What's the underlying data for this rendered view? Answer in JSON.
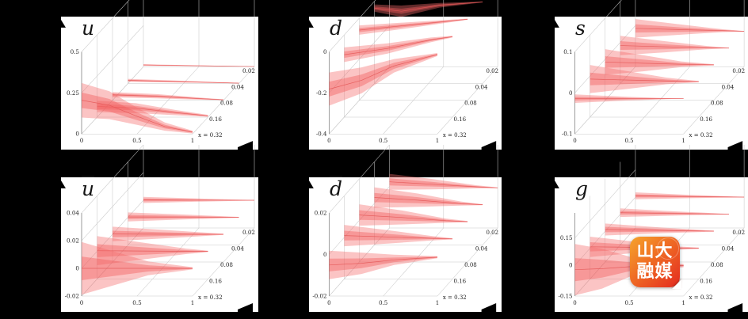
{
  "theme": {
    "background": "#000000",
    "panel_bg": "#ffffff",
    "grid_color": "#c8c8c8",
    "axis_color": "#8a8a8a",
    "band_fill": "rgba(246,108,108,0.40)",
    "band_core_fill": "rgba(240,90,90,0.42)",
    "center_line": "rgba(228,88,88,0.9)",
    "label_color": "#222222",
    "arrow_color": "#000000"
  },
  "logo": {
    "name": "shanda-rongmei-logo",
    "line1": "山大",
    "line2": "融媒",
    "color_top": "#f6a42c",
    "color_bottom": "#e42a20",
    "text_color": "#ffffff"
  },
  "chart_data": [
    {
      "type": "area",
      "id": "u",
      "title": "u",
      "overline": false,
      "yticks": [
        {
          "v": "0.5",
          "f": 0
        },
        {
          "v": "0.25",
          "f": 0.5
        },
        {
          "v": "0",
          "f": 1
        }
      ],
      "xticks": [
        "0",
        "0.5",
        "1"
      ],
      "zlabels": [
        "x = 0.32",
        "0.16",
        "0.08",
        "0.04",
        "0.02"
      ],
      "xlim": [
        0,
        1
      ],
      "baseFrac": 1.0,
      "scale": 210,
      "slices": [
        {
          "x": 0.32,
          "band": [
            [
              0,
              0.31,
              0.1
            ],
            [
              0.25,
              0.26,
              0.09
            ],
            [
              0.5,
              0.16,
              0.055
            ],
            [
              0.75,
              0.07,
              0.02
            ],
            [
              1,
              0.02,
              0.003
            ]
          ]
        },
        {
          "x": 0.16,
          "band": [
            [
              0,
              0.1,
              0.03
            ],
            [
              0.35,
              0.085,
              0.025
            ],
            [
              0.7,
              0.045,
              0.012
            ],
            [
              1,
              0.014,
              0.002
            ]
          ]
        },
        {
          "x": 0.08,
          "band": [
            [
              0,
              0.05,
              0.018
            ],
            [
              0.4,
              0.038,
              0.012
            ],
            [
              0.8,
              0.016,
              0.004
            ],
            [
              1,
              0.006,
              0.001
            ]
          ]
        },
        {
          "x": 0.04,
          "band": [
            [
              0,
              0.028,
              0.01
            ],
            [
              0.5,
              0.016,
              0.006
            ],
            [
              1,
              0.004,
              0.0005
            ]
          ]
        },
        {
          "x": 0.02,
          "band": [
            [
              0,
              0.015,
              0.006
            ],
            [
              0.5,
              0.008,
              0.003
            ],
            [
              1,
              0.002,
              0.0003
            ]
          ]
        }
      ]
    },
    {
      "type": "area",
      "id": "d",
      "title": "d",
      "overline": false,
      "yticks": [
        {
          "v": "0",
          "f": 0
        },
        {
          "v": "-0.2",
          "f": 0.5
        },
        {
          "v": "-0.4",
          "f": 1
        }
      ],
      "xticks": [
        "0",
        "0.5",
        "1"
      ],
      "zlabels": [
        "x = 0.32",
        "0.16",
        "0.08",
        "0.04",
        "0.02"
      ],
      "xlim": [
        0,
        1
      ],
      "baseFrac": 0.0,
      "scale": 265,
      "slices": [
        {
          "x": 0.32,
          "band": [
            [
              0,
              -0.1,
              -0.26
            ],
            [
              0.3,
              -0.075,
              -0.2
            ],
            [
              0.6,
              -0.035,
              -0.1
            ],
            [
              1,
              -0.006,
              -0.02
            ]
          ]
        },
        {
          "x": 0.16,
          "band": [
            [
              0,
              -0.06,
              -0.13
            ],
            [
              0.4,
              -0.04,
              -0.09
            ],
            [
              0.8,
              -0.012,
              -0.035
            ],
            [
              1,
              -0.004,
              -0.012
            ]
          ]
        },
        {
          "x": 0.08,
          "band": [
            [
              0,
              -0.035,
              -0.08
            ],
            [
              0.5,
              -0.018,
              -0.045
            ],
            [
              1,
              -0.002,
              -0.008
            ]
          ]
        },
        {
          "x": 0.04,
          "band": [
            [
              0,
              -0.015,
              -0.05
            ],
            [
              0.25,
              -0.02,
              -0.075
            ],
            [
              0.6,
              -0.008,
              -0.03
            ],
            [
              1,
              -0.001,
              -0.005
            ]
          ]
        },
        {
          "x": 0.02,
          "band": [
            [
              0,
              -0.01,
              -0.04
            ],
            [
              0.25,
              -0.015,
              -0.06
            ],
            [
              0.6,
              -0.005,
              -0.02
            ],
            [
              1,
              0,
              -0.003
            ]
          ]
        }
      ]
    },
    {
      "type": "area",
      "id": "s",
      "title": "s",
      "overline": false,
      "yticks": [
        {
          "v": "0.1",
          "f": 0
        },
        {
          "v": "0",
          "f": 0.5
        },
        {
          "v": "-0.1",
          "f": 1
        }
      ],
      "xticks": [
        "0",
        "0.5",
        "1"
      ],
      "zlabels": [
        "x = 0.32",
        "0.16",
        "0.08",
        "0.04",
        "0.02"
      ],
      "xlim": [
        0,
        1
      ],
      "baseFrac": 0.57,
      "scale": 450,
      "slices": [
        {
          "x": 0.32,
          "band": [
            [
              0,
              0.012,
              -0.012
            ],
            [
              0.5,
              0.005,
              -0.005
            ],
            [
              0.9,
              0.001,
              -0.001
            ],
            [
              1,
              0.0005,
              -0.0005
            ]
          ]
        },
        {
          "x": 0.16,
          "band": [
            [
              0,
              0.048,
              -0.032
            ],
            [
              0.35,
              0.03,
              -0.02
            ],
            [
              0.7,
              0.012,
              -0.007
            ],
            [
              1,
              0.002,
              -0.001
            ]
          ]
        },
        {
          "x": 0.08,
          "band": [
            [
              0,
              0.045,
              -0.028
            ],
            [
              0.35,
              0.028,
              -0.018
            ],
            [
              0.7,
              0.01,
              -0.006
            ],
            [
              1,
              0.002,
              -0.001
            ]
          ]
        },
        {
          "x": 0.04,
          "band": [
            [
              0,
              0.035,
              -0.02
            ],
            [
              0.4,
              0.02,
              -0.012
            ],
            [
              0.8,
              0.006,
              -0.003
            ],
            [
              1,
              0.001,
              -0.0005
            ]
          ]
        },
        {
          "x": 0.02,
          "band": [
            [
              0,
              0.035,
              -0.018
            ],
            [
              0.4,
              0.02,
              -0.01
            ],
            [
              0.8,
              0.006,
              -0.002
            ],
            [
              1,
              0.001,
              -0.0005
            ]
          ]
        }
      ]
    },
    {
      "type": "area",
      "id": "ubar",
      "title": "u",
      "overline": true,
      "yticks": [
        {
          "v": "0.04",
          "f": 0
        },
        {
          "v": "0.02",
          "f": 0.333
        },
        {
          "v": "0",
          "f": 0.667
        },
        {
          "v": "-0.02",
          "f": 1
        }
      ],
      "xticks": [
        "0",
        "0.5",
        "1"
      ],
      "zlabels": [
        "x = 0.32",
        "0.16",
        "0.08",
        "0.04",
        "0.02"
      ],
      "xlim": [
        0,
        1
      ],
      "baseFrac": 0.667,
      "scale": 1750,
      "slices": [
        {
          "x": 0.32,
          "band": [
            [
              0,
              0.019,
              -0.019
            ],
            [
              0.3,
              0.012,
              -0.012
            ],
            [
              0.6,
              0.005,
              -0.005
            ],
            [
              1,
              0.0008,
              -0.0008
            ]
          ]
        },
        {
          "x": 0.16,
          "band": [
            [
              0,
              0.011,
              -0.01
            ],
            [
              0.4,
              0.0065,
              -0.006
            ],
            [
              0.8,
              0.002,
              -0.002
            ],
            [
              1,
              0.0005,
              -0.0005
            ]
          ]
        },
        {
          "x": 0.08,
          "band": [
            [
              0,
              0.0055,
              -0.005
            ],
            [
              0.5,
              0.003,
              -0.0028
            ],
            [
              1,
              0.0004,
              -0.0004
            ]
          ]
        },
        {
          "x": 0.04,
          "band": [
            [
              0,
              0.0035,
              -0.003
            ],
            [
              0.5,
              0.002,
              -0.0016
            ],
            [
              1,
              0.0003,
              -0.0003
            ]
          ]
        },
        {
          "x": 0.02,
          "band": [
            [
              0,
              0.0025,
              -0.002
            ],
            [
              0.5,
              0.0013,
              -0.001
            ],
            [
              1,
              0.0002,
              -0.0002
            ]
          ]
        }
      ]
    },
    {
      "type": "area",
      "id": "dbar",
      "title": "d",
      "overline": true,
      "yticks": [
        {
          "v": "0.02",
          "f": 0
        },
        {
          "v": "0",
          "f": 0.5
        },
        {
          "v": "-0.02",
          "f": 1
        }
      ],
      "xticks": [
        "0",
        "0.5",
        "1"
      ],
      "zlabels": [
        "x = 0.32",
        "0.16",
        "0.08",
        "0.04",
        "0.02"
      ],
      "xlim": [
        0,
        1
      ],
      "baseFrac": 0.52,
      "scale": 2250,
      "slices": [
        {
          "x": 0.32,
          "band": [
            [
              0,
              0.003,
              -0.013
            ],
            [
              0.3,
              0.002,
              -0.01
            ],
            [
              0.6,
              0.0008,
              -0.005
            ],
            [
              1,
              0,
              -0.0012
            ]
          ]
        },
        {
          "x": 0.16,
          "band": [
            [
              0,
              0.008,
              -0.004
            ],
            [
              0.4,
              0.005,
              -0.0025
            ],
            [
              0.8,
              0.0018,
              -0.0008
            ],
            [
              1,
              0.0005,
              -0.0002
            ]
          ]
        },
        {
          "x": 0.08,
          "band": [
            [
              0,
              0.01,
              -0.002
            ],
            [
              0.4,
              0.0065,
              -0.0013
            ],
            [
              0.8,
              0.002,
              -0.0004
            ],
            [
              1,
              0.0006,
              -0.0001
            ]
          ]
        },
        {
          "x": 0.04,
          "band": [
            [
              0,
              0.01,
              -0.0015
            ],
            [
              0.4,
              0.0065,
              -0.001
            ],
            [
              0.8,
              0.002,
              -0.0003
            ],
            [
              1,
              0.0005,
              -0.0001
            ]
          ]
        },
        {
          "x": 0.02,
          "band": [
            [
              0,
              0.008,
              -0.001
            ],
            [
              0.4,
              0.005,
              -0.0007
            ],
            [
              0.8,
              0.0016,
              -0.0002
            ],
            [
              1,
              0.0004,
              -0.0001
            ]
          ]
        }
      ]
    },
    {
      "type": "area",
      "id": "g",
      "title": "g",
      "overline": false,
      "yticks": [
        {
          "v": "0.15",
          "f": 0.3
        },
        {
          "v": "0",
          "f": 0.63
        },
        {
          "v": "-0.15",
          "f": 1
        }
      ],
      "xticks": [
        "0",
        "0.5",
        "1"
      ],
      "zlabels": [
        "x = 0.32",
        "0.16",
        "0.08",
        "0.04",
        "0.02"
      ],
      "xlim": [
        0,
        1
      ],
      "baseFrac": 0.63,
      "scale": 245,
      "slices": [
        {
          "x": 0.32,
          "band": [
            [
              0,
              0.11,
              -0.155
            ],
            [
              0.25,
              0.085,
              -0.12
            ],
            [
              0.5,
              0.045,
              -0.06
            ],
            [
              0.75,
              0.018,
              -0.025
            ],
            [
              1,
              0.007,
              -0.01
            ]
          ]
        },
        {
          "x": 0.16,
          "band": [
            [
              0,
              0.06,
              -0.045
            ],
            [
              0.4,
              0.035,
              -0.025
            ],
            [
              0.8,
              0.01,
              -0.008
            ],
            [
              1,
              0.004,
              -0.003
            ]
          ]
        },
        {
          "x": 0.08,
          "band": [
            [
              0,
              0.04,
              -0.022
            ],
            [
              0.5,
              0.02,
              -0.011
            ],
            [
              1,
              0.003,
              -0.002
            ]
          ]
        },
        {
          "x": 0.04,
          "band": [
            [
              0,
              0.03,
              -0.014
            ],
            [
              0.5,
              0.015,
              -0.007
            ],
            [
              1,
              0.002,
              -0.001
            ]
          ]
        },
        {
          "x": 0.02,
          "band": [
            [
              0,
              0.025,
              -0.011
            ],
            [
              0.5,
              0.012,
              -0.005
            ],
            [
              1,
              0.002,
              -0.001
            ]
          ]
        }
      ]
    }
  ]
}
